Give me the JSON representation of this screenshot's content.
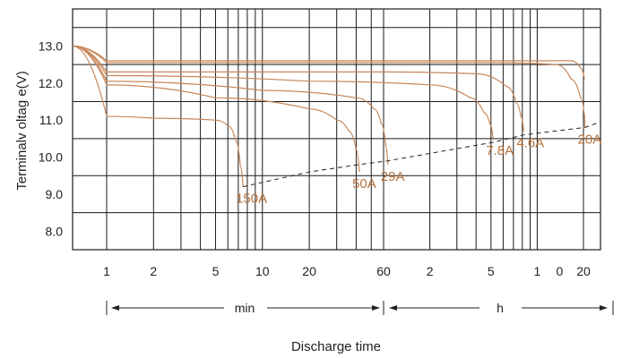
{
  "chart_data": {
    "type": "line",
    "title": "",
    "ylabel": "Terminalv oltag e(V)",
    "xlabel": "Discharge time",
    "ylim": [
      7.5,
      14.0
    ],
    "yticks": [
      "13.0",
      "12.0",
      "11.0",
      "10.0",
      "9.0",
      "8.0"
    ],
    "x_tick_labels": [
      "1",
      "2",
      "5",
      "10",
      "20",
      "60",
      "2",
      "5",
      "1",
      "0",
      "20"
    ],
    "unit_labels": {
      "min": "min",
      "h": "h"
    },
    "grid": true,
    "colors": {
      "curve": "#c8875a",
      "label": "#b5703a",
      "axis": "#1a1a1a",
      "cutoff": "#222222"
    },
    "series": [
      {
        "name": "150A",
        "x": [
          0.7,
          1.0,
          2.0,
          5.0,
          6.0,
          6.8,
          7.2,
          7.5
        ],
        "y": [
          13.0,
          11.1,
          11.05,
          11.0,
          10.85,
          10.4,
          9.8,
          9.2
        ]
      },
      {
        "name": "50A",
        "x": [
          0.7,
          1.0,
          5.0,
          20.0,
          30.0,
          36.0,
          40.0,
          42.0
        ],
        "y": [
          13.0,
          11.95,
          11.6,
          11.3,
          11.0,
          10.7,
          10.2,
          9.6
        ]
      },
      {
        "name": "29A",
        "x": [
          0.7,
          1.0,
          10.0,
          40.0,
          52.0,
          58.0,
          62.0,
          64.0
        ],
        "y": [
          13.0,
          12.05,
          11.8,
          11.6,
          11.3,
          10.9,
          10.3,
          9.8
        ]
      },
      {
        "name": "7.8A",
        "x": [
          0.7,
          1.0,
          20.0,
          120.0,
          220.0,
          270.0,
          295.0,
          310.0
        ],
        "y": [
          13.0,
          12.2,
          12.05,
          11.95,
          11.6,
          11.2,
          10.9,
          10.5
        ]
      },
      {
        "name": "4.6A",
        "x": [
          0.7,
          1.0,
          60.0,
          240.0,
          380.0,
          440.0,
          470.0,
          490.0
        ],
        "y": [
          13.0,
          12.3,
          12.3,
          12.25,
          11.9,
          11.45,
          11.1,
          10.7
        ]
      },
      {
        "name": "20A",
        "x": [
          0.7,
          1.0,
          300.0,
          800.0,
          1000.0,
          1150.0,
          1230.0,
          1270.0
        ],
        "y": [
          13.0,
          12.55,
          12.55,
          12.5,
          12.1,
          11.6,
          11.2,
          10.8
        ]
      },
      {
        "name": "",
        "x": [
          0.7,
          1.0,
          300.0,
          1000.0,
          1150.0,
          1250.0
        ],
        "y": [
          13.0,
          12.6,
          12.6,
          12.6,
          12.4,
          12.1
        ]
      }
    ],
    "cutoff_line": {
      "x": [
        7.5,
        20.0,
        42.0,
        64.0,
        310.0,
        490.0,
        1270.0,
        2400.0
      ],
      "y": [
        9.2,
        9.6,
        9.8,
        9.9,
        10.4,
        10.6,
        10.8,
        10.95
      ]
    }
  }
}
